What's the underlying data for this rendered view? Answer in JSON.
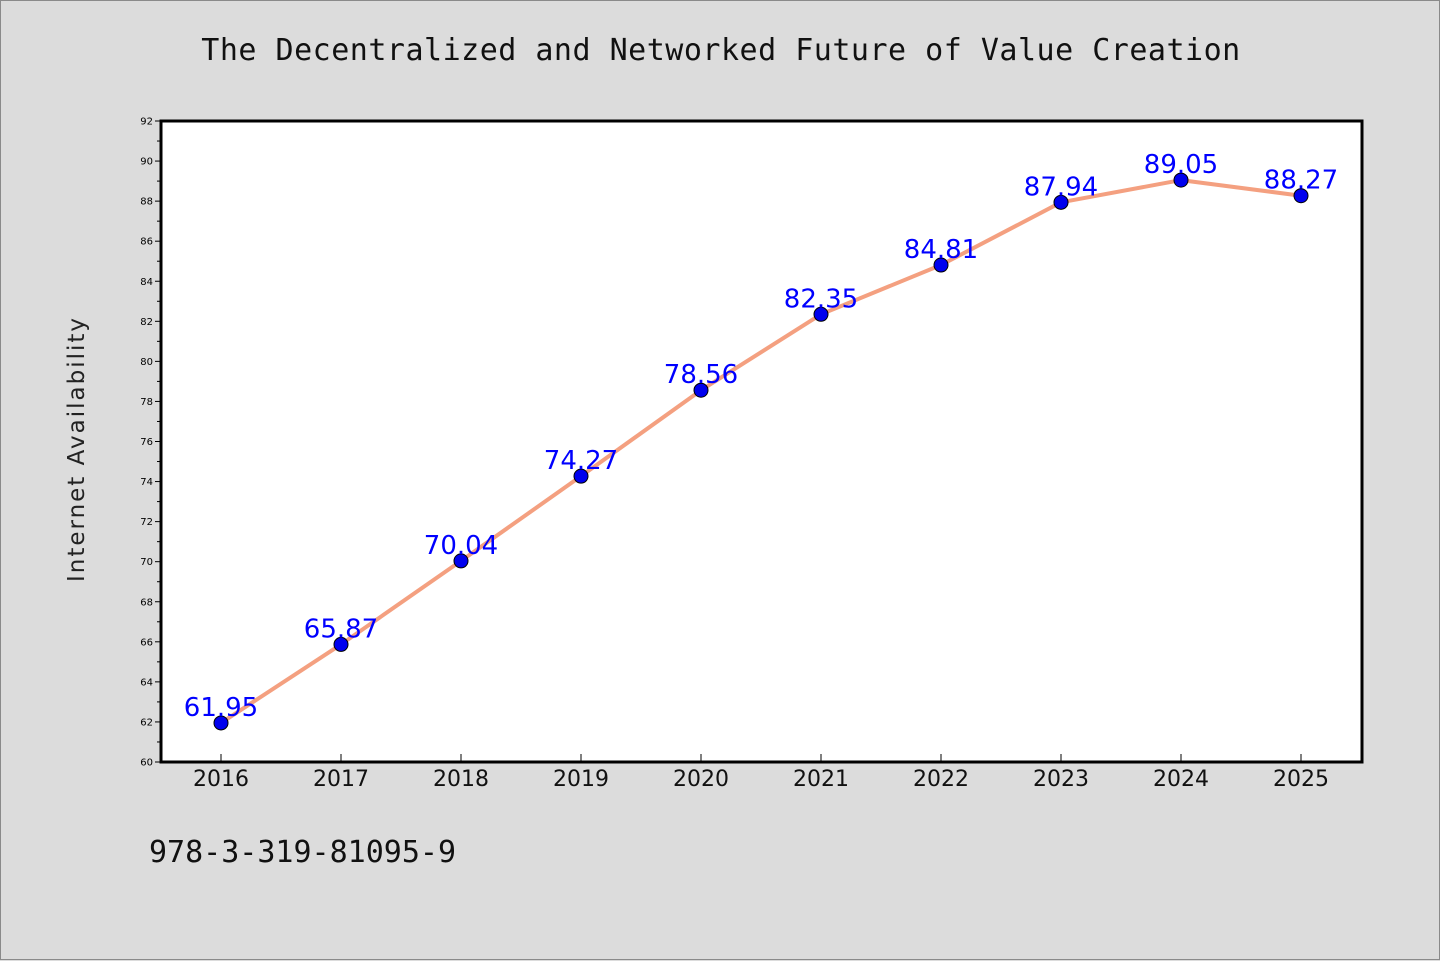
{
  "footnote": "978-3-319-81095-9",
  "colors": {
    "background": "#dcdcdc",
    "plot_background": "#ffffff",
    "line": "#f4a080",
    "marker": "#0000ee",
    "data_label": "#0000ff"
  },
  "chart_data": {
    "type": "line",
    "title": "The Decentralized and Networked Future of Value Creation",
    "xlabel": "",
    "ylabel": "Internet Availability",
    "categories": [
      "2016",
      "2017",
      "2018",
      "2019",
      "2020",
      "2021",
      "2022",
      "2023",
      "2024",
      "2025"
    ],
    "values": [
      61.95,
      65.87,
      70.04,
      74.27,
      78.56,
      82.35,
      84.81,
      87.94,
      89.05,
      88.27
    ],
    "data_labels": [
      "61.95",
      "65.87",
      "70.04",
      "74.27",
      "78.56",
      "82.35",
      "84.81",
      "87.94",
      "89.05",
      "88.27"
    ],
    "ylim": [
      60,
      92
    ],
    "y_ticks": [
      60,
      62,
      64,
      66,
      68,
      70,
      72,
      74,
      76,
      78,
      80,
      82,
      84,
      86,
      88,
      90,
      92
    ],
    "grid": false,
    "legend": "none",
    "marker": "circle"
  }
}
